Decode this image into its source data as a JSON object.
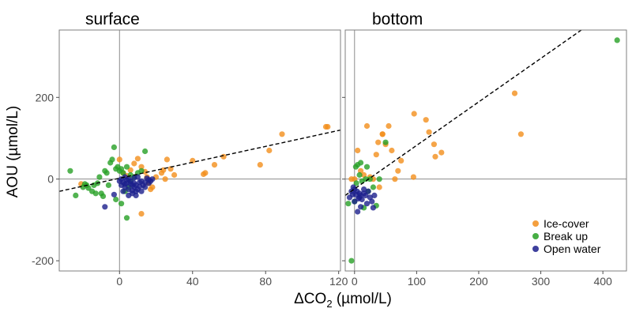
{
  "chart_data": {
    "type": "scatter",
    "ylabel": "AOU (µmol/L)",
    "xlabel": {
      "prefix": "ΔCO",
      "subscript": "2",
      "suffix": " (µmol/L)"
    },
    "legend_position": "bottom-right",
    "legend": [
      {
        "name": "Ice-cover",
        "color": "#f28e1c"
      },
      {
        "name": "Break up",
        "color": "#27a025"
      },
      {
        "name": "Open water",
        "color": "#1c1f8c"
      }
    ],
    "ylim": [
      -225,
      365
    ],
    "yticks": [
      -200,
      0,
      200
    ],
    "ytick_labels": [
      "-200",
      "0",
      "200"
    ],
    "grid": false,
    "reference_lines": "x = 0 and y = 0",
    "panels": [
      {
        "title": "surface",
        "xlim": [
          -33,
          121
        ],
        "xticks": [
          0,
          40,
          80,
          120
        ],
        "xtick_labels": [
          "0",
          "40",
          "80",
          "120"
        ],
        "trendline": {
          "style": "dashed",
          "x": [
            -33,
            121
          ],
          "y": [
            -30,
            120
          ]
        },
        "series": [
          {
            "name": "Ice-cover",
            "color": "#f28e1c",
            "points": [
              [
                -21,
                -12
              ],
              [
                0,
                48
              ],
              [
                2,
                15
              ],
              [
                4,
                8
              ],
              [
                6,
                22
              ],
              [
                8,
                38
              ],
              [
                10,
                50
              ],
              [
                12,
                30
              ],
              [
                14,
                18
              ],
              [
                15,
                5
              ],
              [
                16,
                -10
              ],
              [
                17,
                -25
              ],
              [
                18,
                -20
              ],
              [
                12,
                -85
              ],
              [
                20,
                5
              ],
              [
                23,
                15
              ],
              [
                24,
                22
              ],
              [
                25,
                0
              ],
              [
                26,
                48
              ],
              [
                28,
                25
              ],
              [
                30,
                10
              ],
              [
                40,
                45
              ],
              [
                46,
                12
              ],
              [
                47,
                15
              ],
              [
                52,
                35
              ],
              [
                57,
                55
              ],
              [
                77,
                35
              ],
              [
                82,
                70
              ],
              [
                89,
                110
              ],
              [
                113,
                128
              ],
              [
                114,
                128
              ]
            ]
          },
          {
            "name": "Break up",
            "color": "#27a025",
            "points": [
              [
                -27,
                20
              ],
              [
                -24,
                -40
              ],
              [
                -20,
                -20
              ],
              [
                -19,
                -12
              ],
              [
                -18,
                -15
              ],
              [
                -17,
                -22
              ],
              [
                -15,
                -30
              ],
              [
                -14,
                -15
              ],
              [
                -13,
                -35
              ],
              [
                -12,
                -10
              ],
              [
                -11,
                5
              ],
              [
                -10,
                -35
              ],
              [
                -9,
                -42
              ],
              [
                -8,
                20
              ],
              [
                -7,
                15
              ],
              [
                -6,
                -15
              ],
              [
                -5,
                40
              ],
              [
                -4,
                48
              ],
              [
                -3,
                78
              ],
              [
                -2,
                -50
              ],
              [
                -2,
                25
              ],
              [
                -1,
                30
              ],
              [
                0,
                20
              ],
              [
                1,
                -60
              ],
              [
                1,
                25
              ],
              [
                2,
                15
              ],
              [
                3,
                -30
              ],
              [
                4,
                -95
              ],
              [
                4,
                30
              ],
              [
                5,
                -20
              ],
              [
                6,
                10
              ],
              [
                8,
                5
              ],
              [
                10,
                15
              ],
              [
                12,
                20
              ],
              [
                14,
                68
              ],
              [
                6,
                -5
              ]
            ]
          },
          {
            "name": "Open water",
            "color": "#1c1f8c",
            "points": [
              [
                -8,
                -68
              ],
              [
                -3,
                -38
              ],
              [
                0,
                -5
              ],
              [
                1,
                -15
              ],
              [
                2,
                -8
              ],
              [
                3,
                -20
              ],
              [
                4,
                -10
              ],
              [
                5,
                0
              ],
              [
                5,
                -25
              ],
              [
                6,
                -5
              ],
              [
                7,
                -15
              ],
              [
                8,
                -10
              ],
              [
                9,
                -30
              ],
              [
                9,
                -40
              ],
              [
                10,
                5
              ],
              [
                11,
                -18
              ],
              [
                12,
                -5
              ],
              [
                13,
                -15
              ],
              [
                14,
                -8
              ],
              [
                15,
                2
              ],
              [
                16,
                -10
              ],
              [
                17,
                -5
              ],
              [
                18,
                0
              ],
              [
                3,
                5
              ],
              [
                4,
                -2
              ],
              [
                6,
                -12
              ],
              [
                7,
                -28
              ],
              [
                8,
                -20
              ],
              [
                10,
                -25
              ],
              [
                11,
                -8
              ],
              [
                2,
                -30
              ],
              [
                5,
                -40
              ],
              [
                7,
                -35
              ],
              [
                9,
                -15
              ],
              [
                12,
                -30
              ],
              [
                14,
                -20
              ],
              [
                16,
                -2
              ],
              [
                1,
                0
              ],
              [
                3,
                -12
              ],
              [
                8,
                3
              ]
            ]
          }
        ]
      },
      {
        "title": "bottom",
        "xlim": [
          -15,
          438
        ],
        "xticks": [
          0,
          100,
          200,
          300,
          400
        ],
        "xtick_labels": [
          "0",
          "100",
          "200",
          "300",
          "400"
        ],
        "trendline": {
          "style": "dashed",
          "x": [
            -15,
            370
          ],
          "y": [
            -40,
            370
          ]
        },
        "series": [
          {
            "name": "Ice-cover",
            "color": "#f28e1c",
            "points": [
              [
                -5,
                0
              ],
              [
                0,
                0
              ],
              [
                5,
                70
              ],
              [
                10,
                20
              ],
              [
                15,
                10
              ],
              [
                20,
                130
              ],
              [
                25,
                5
              ],
              [
                30,
                0
              ],
              [
                35,
                60
              ],
              [
                40,
                -20
              ],
              [
                45,
                110
              ],
              [
                50,
                85
              ],
              [
                55,
                130
              ],
              [
                60,
                70
              ],
              [
                65,
                0
              ],
              [
                70,
                20
              ],
              [
                75,
                45
              ],
              [
                95,
                5
              ],
              [
                96,
                160
              ],
              [
                115,
                145
              ],
              [
                120,
                115
              ],
              [
                128,
                85
              ],
              [
                130,
                55
              ],
              [
                140,
                65
              ],
              [
                258,
                210
              ],
              [
                268,
                110
              ],
              [
                45,
                110
              ],
              [
                38,
                90
              ]
            ]
          },
          {
            "name": "Break up",
            "color": "#27a025",
            "points": [
              [
                -5,
                -200
              ],
              [
                0,
                -55
              ],
              [
                3,
                -10
              ],
              [
                5,
                35
              ],
              [
                8,
                10
              ],
              [
                10,
                40
              ],
              [
                12,
                -5
              ],
              [
                15,
                -70
              ],
              [
                18,
                0
              ],
              [
                20,
                30
              ],
              [
                22,
                -30
              ],
              [
                25,
                0
              ],
              [
                30,
                -20
              ],
              [
                35,
                -65
              ],
              [
                40,
                0
              ],
              [
                50,
                90
              ],
              [
                -10,
                -60
              ],
              [
                2,
                30
              ],
              [
                423,
                340
              ]
            ]
          },
          {
            "name": "Open water",
            "color": "#1c1f8c",
            "points": [
              [
                -8,
                -45
              ],
              [
                -5,
                -30
              ],
              [
                -3,
                -38
              ],
              [
                0,
                -55
              ],
              [
                2,
                -38
              ],
              [
                4,
                -30
              ],
              [
                6,
                -48
              ],
              [
                8,
                -45
              ],
              [
                10,
                -40
              ],
              [
                12,
                -50
              ],
              [
                15,
                -35
              ],
              [
                18,
                -40
              ],
              [
                20,
                -60
              ],
              [
                22,
                -30
              ],
              [
                25,
                -45
              ],
              [
                28,
                -55
              ],
              [
                30,
                -70
              ],
              [
                32,
                -40
              ],
              [
                5,
                -80
              ],
              [
                10,
                -68
              ],
              [
                15,
                -25
              ],
              [
                -2,
                -20
              ],
              [
                0,
                -25
              ],
              [
                8,
                -35
              ]
            ]
          }
        ]
      }
    ]
  }
}
